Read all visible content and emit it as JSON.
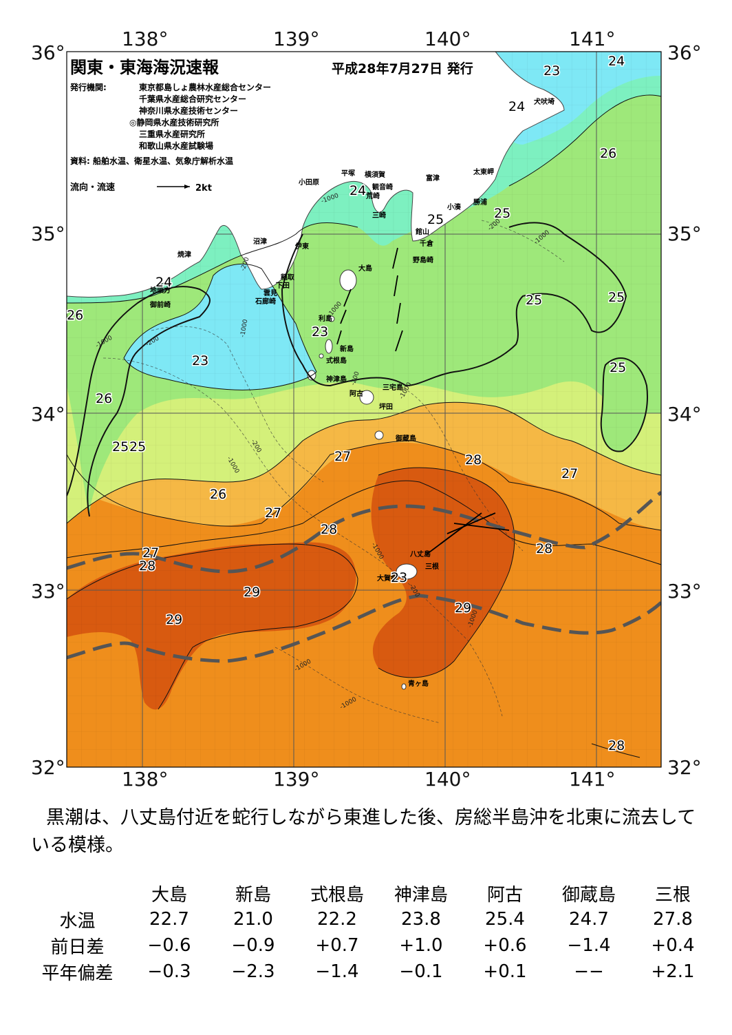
{
  "map": {
    "title": "関東・東海海況速報",
    "issue_date": "平成28年7月27日 発行",
    "issuers_label": "発行機関:",
    "issuers": [
      "東京都島しょ農林水産総合センター",
      "千葉県水産総合研究センター",
      "神奈川県水産技術センター",
      "◎静岡県水産技術研究所",
      "三重県水産研究所",
      "和歌山県水産試験場"
    ],
    "source": "資料: 船舶水温、衛星水温、気象庁解析水温",
    "flow_legend": "流向・流速",
    "flow_scale": "2kt",
    "lon_labels": [
      "138°",
      "139°",
      "140°",
      "141°"
    ],
    "lat_labels": [
      "36°",
      "35°",
      "34°",
      "33°",
      "32°"
    ],
    "place_names": [
      "焼津",
      "地頭方",
      "御前崎",
      "沼津",
      "伊東",
      "稲取",
      "下田",
      "雲見",
      "石廊崎",
      "小田原",
      "平塚",
      "横須賀",
      "観音崎",
      "荒崎",
      "三崎",
      "富津",
      "館山",
      "千倉",
      "野島崎",
      "小湊",
      "勝浦",
      "太東岬",
      "犬吠埼",
      "大島",
      "利島",
      "新島",
      "式根島",
      "神津島",
      "阿古",
      "三宅島",
      "坪田",
      "御蔵島",
      "八丈島",
      "三根",
      "大賀郷",
      "青ヶ島"
    ],
    "temperature_labels": [
      "23",
      "24",
      "24",
      "24",
      "24",
      "25",
      "25",
      "25",
      "25",
      "25",
      "26",
      "26",
      "26",
      "23",
      "23",
      "26",
      "25",
      "25",
      "27",
      "28",
      "27",
      "26",
      "27",
      "28",
      "27",
      "28",
      "28",
      "29",
      "29",
      "29",
      "23",
      "28"
    ],
    "depth_labels": [
      "-200",
      "-1000",
      "-200",
      "-1000",
      "-1000",
      "-200",
      "-1000",
      "-1000",
      "-1000",
      "-200",
      "-1000",
      "-200",
      "-1000",
      "-1000",
      "-1000",
      "-1000",
      "-200"
    ],
    "colors": {
      "t23": "#7ee8f5",
      "t24": "#7df0c0",
      "t25": "#9ee87a",
      "t26": "#d4f07a",
      "t27": "#f5b845",
      "t28": "#ef8e1c",
      "t29": "#d85a10",
      "land": "#ffffff",
      "kuroshio": "#555555",
      "grid": "#707070"
    }
  },
  "caption": "黒潮は、八丈島付近を蛇行しながら東進した後、房総半島沖を北東に流去している模様。",
  "table": {
    "columns": [
      "大島",
      "新島",
      "式根島",
      "神津島",
      "阿古",
      "御蔵島",
      "三根"
    ],
    "rows": [
      {
        "label": "水温",
        "values": [
          "22.7",
          "21.0",
          "22.2",
          "23.8",
          "25.4",
          "24.7",
          "27.8"
        ]
      },
      {
        "label": "前日差",
        "values": [
          "−0.6",
          "−0.9",
          "+0.7",
          "+1.0",
          "+0.6",
          "−1.4",
          "+0.4"
        ]
      },
      {
        "label": "平年偏差",
        "values": [
          "−0.3",
          "−2.3",
          "−1.4",
          "−0.1",
          "+0.1",
          "−−",
          "+2.1"
        ]
      }
    ]
  }
}
